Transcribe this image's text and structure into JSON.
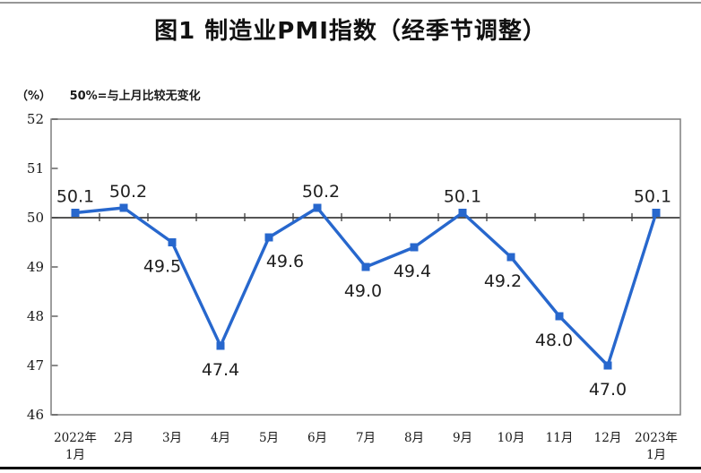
{
  "page": {
    "title": "图1 制造业PMI指数（经季节调整）",
    "unit_label": "（%）",
    "reference_note": "50%=与上月比较无变化"
  },
  "chart_data": {
    "type": "line",
    "series_name": "制造业PMI指数",
    "categories": [
      [
        "2022年",
        "1月"
      ],
      [
        "2月"
      ],
      [
        "3月"
      ],
      [
        "4月"
      ],
      [
        "5月"
      ],
      [
        "6月"
      ],
      [
        "7月"
      ],
      [
        "8月"
      ],
      [
        "9月"
      ],
      [
        "10月"
      ],
      [
        "11月"
      ],
      [
        "12月"
      ],
      [
        "2023年",
        "1月"
      ]
    ],
    "values": [
      50.1,
      50.2,
      49.5,
      47.4,
      49.6,
      50.2,
      49.0,
      49.4,
      50.1,
      49.2,
      48.0,
      47.0,
      50.1
    ],
    "data_labels": [
      "50.1",
      "50.2",
      "49.5",
      "47.4",
      "49.6",
      "50.2",
      "49.0",
      "49.4",
      "50.1",
      "49.2",
      "48.0",
      "47.0",
      "50.1"
    ],
    "ylim": [
      46,
      52
    ],
    "yticks": [
      46,
      47,
      48,
      49,
      50,
      51,
      52
    ],
    "reference_line": 50,
    "grid": "off",
    "legend": "none",
    "marker": "square",
    "line_color": "#2767cd",
    "frame_color": "#7f7f7f",
    "ref_line_color": "#3d3d3d",
    "tick_color": "#4a4a4a",
    "text_color": "#1a1a1a",
    "label_dx": [
      0,
      5,
      -11,
      0,
      18,
      4,
      -3,
      -2,
      0,
      -9,
      -6,
      0,
      -4
    ]
  }
}
